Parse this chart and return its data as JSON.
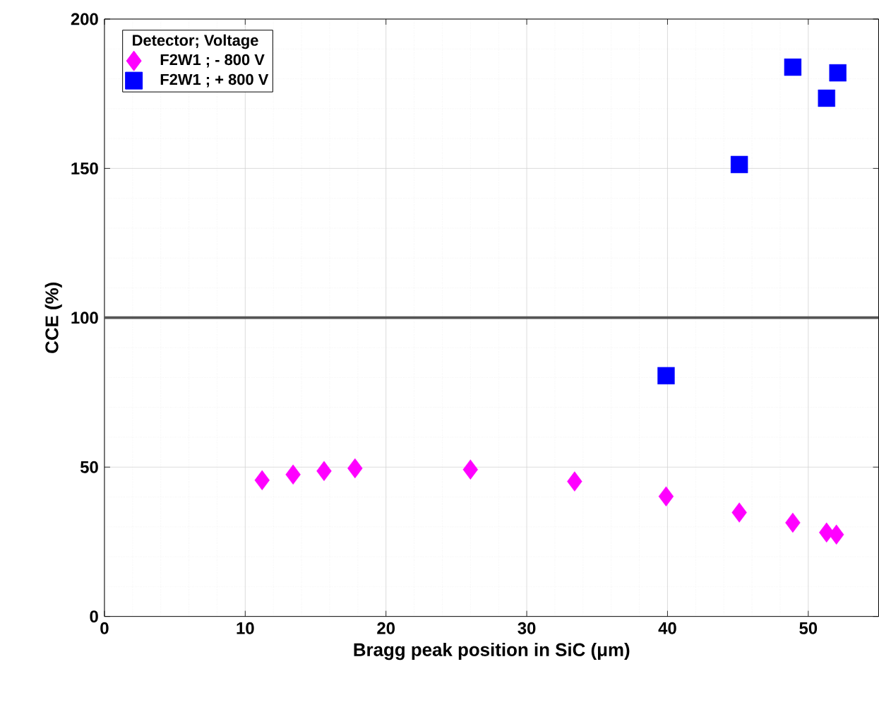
{
  "chart_data": {
    "type": "scatter",
    "xlabel": "Bragg peak position in SiC (μm)",
    "ylabel": "CCE (%)",
    "legend_title": "Detector; Voltage",
    "series": [
      {
        "name": "F2W1 ; - 800 V",
        "color": "#ff00ff",
        "marker": "diamond",
        "x": [
          11.2,
          13.4,
          15.6,
          17.8,
          26.0,
          33.4,
          39.9,
          45.1,
          48.9,
          51.3,
          52.0
        ],
        "values": [
          45.6,
          47.5,
          48.7,
          49.6,
          49.2,
          45.2,
          40.2,
          34.8,
          31.4,
          28.1,
          27.4
        ]
      },
      {
        "name": "F2W1 ; + 800 V",
        "color": "#0000ff",
        "marker": "square",
        "x": [
          39.9,
          45.1,
          48.9,
          51.3,
          51.9,
          52.1
        ],
        "values": [
          80.6,
          151.3,
          183.9,
          173.5,
          null,
          182.0
        ]
      }
    ],
    "xlim": [
      0,
      55
    ],
    "ylim": [
      0,
      200
    ],
    "xticks": [
      0,
      10,
      20,
      30,
      40,
      50
    ],
    "yticks": [
      0,
      50,
      100,
      150,
      200
    ],
    "ref_lines": [
      {
        "axis": "y",
        "value": 100,
        "color": "#555555"
      }
    ],
    "grid": true,
    "legend": "top left"
  }
}
